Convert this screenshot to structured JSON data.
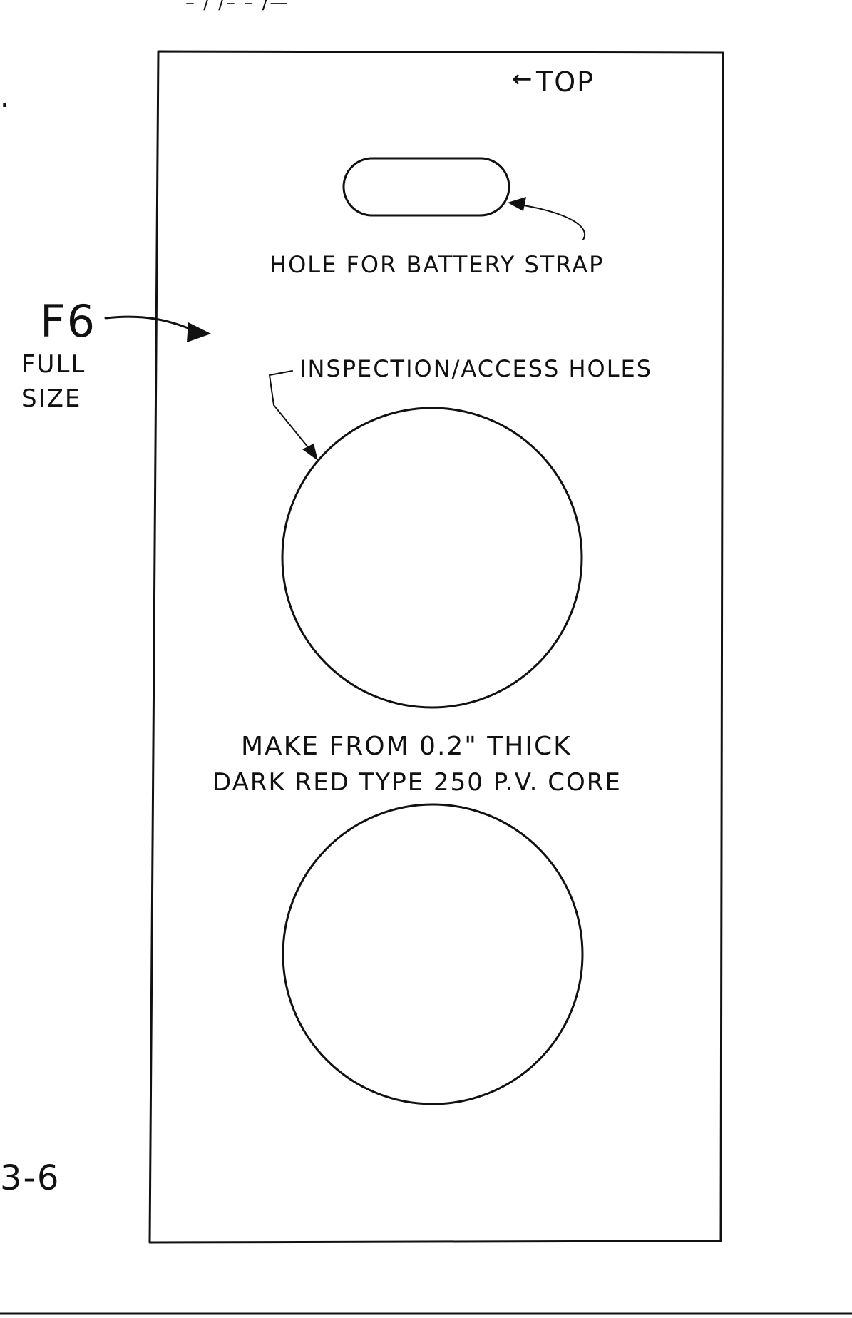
{
  "figure": {
    "part_id": "F6",
    "scale_note_line1": "FULL",
    "scale_note_line2": "SIZE",
    "top_label": "TOP",
    "top_marker": "←",
    "strap_hole_label": "HOLE FOR BATTERY STRAP",
    "access_holes_label": "INSPECTION/ACCESS HOLES",
    "material_line1": "MAKE FROM 0.2\" THICK",
    "material_line2": "DARK RED TYPE 250 P.V. CORE",
    "page_number": "3-6",
    "top_margin_text": "– / /– – /—"
  },
  "colors": {
    "ink": "#111111",
    "paper": "#ffffff"
  }
}
